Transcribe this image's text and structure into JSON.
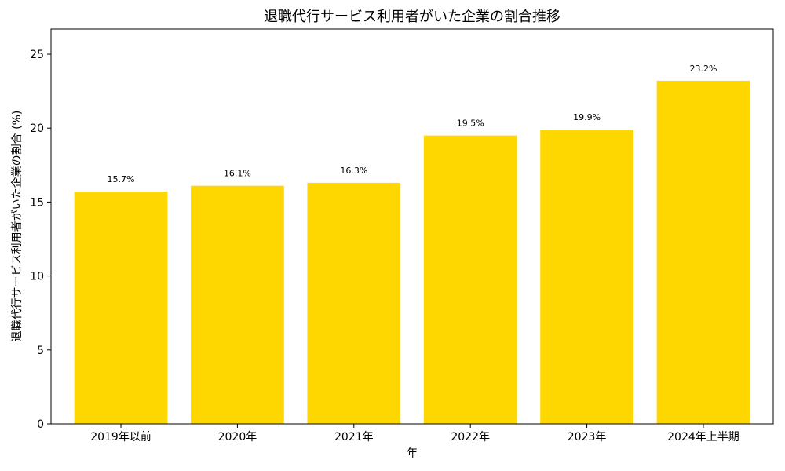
{
  "chart_data": {
    "type": "bar",
    "title": "退職代行サービス利用者がいた企業の割合推移",
    "xlabel": "年",
    "ylabel": "退職代行サービス利用者がいた企業の割合 (%)",
    "categories": [
      "2019年以前",
      "2020年",
      "2021年",
      "2022年",
      "2023年",
      "2024年上半期"
    ],
    "values": [
      15.7,
      16.1,
      16.3,
      19.5,
      19.9,
      23.2
    ],
    "data_labels": [
      "15.7%",
      "16.1%",
      "16.3%",
      "19.5%",
      "19.9%",
      "23.2%"
    ],
    "ylim": [
      0,
      26.7
    ],
    "yticks": [
      0,
      5,
      10,
      15,
      20,
      25
    ],
    "grid": false,
    "bar_color": "#FFD700"
  }
}
